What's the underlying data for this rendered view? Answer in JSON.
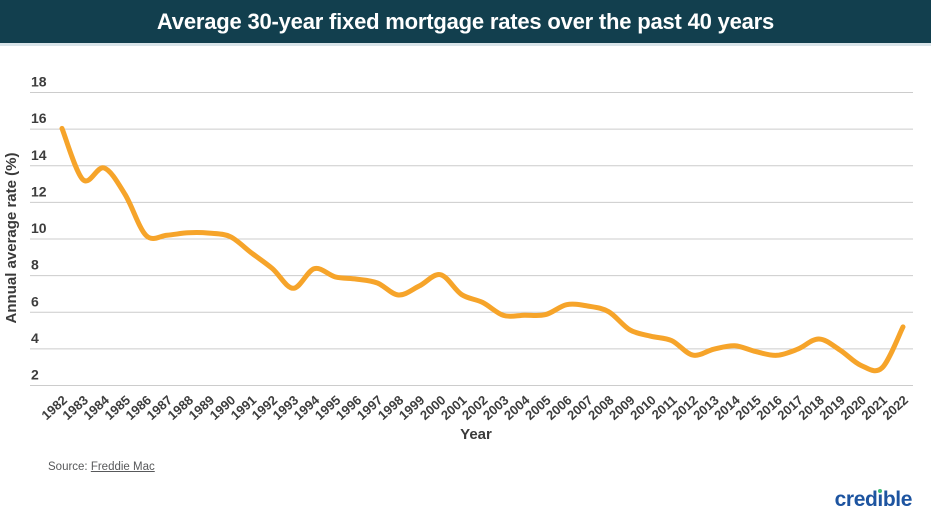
{
  "header": {
    "title": "Average 30-year fixed mortgage rates over the past 40 years"
  },
  "chart_data": {
    "type": "line",
    "title": "Average 30-year fixed mortgage rates over the past 40 years",
    "x": [
      1982,
      1983,
      1984,
      1985,
      1986,
      1987,
      1988,
      1989,
      1990,
      1991,
      1992,
      1993,
      1994,
      1995,
      1996,
      1997,
      1998,
      1999,
      2000,
      2001,
      2002,
      2003,
      2004,
      2005,
      2006,
      2007,
      2008,
      2009,
      2010,
      2011,
      2012,
      2013,
      2014,
      2015,
      2016,
      2017,
      2018,
      2019,
      2020,
      2021,
      2022
    ],
    "values": [
      16.04,
      13.24,
      13.88,
      12.43,
      10.19,
      10.21,
      10.34,
      10.32,
      10.13,
      9.25,
      8.39,
      7.31,
      8.38,
      7.93,
      7.81,
      7.6,
      6.94,
      7.44,
      8.05,
      6.97,
      6.54,
      5.83,
      5.84,
      5.87,
      6.41,
      6.34,
      6.03,
      5.04,
      4.69,
      4.45,
      3.66,
      3.98,
      4.17,
      3.85,
      3.65,
      3.99,
      4.54,
      3.94,
      3.1,
      2.96,
      5.2
    ],
    "xlabel": "Year",
    "ylabel": "Annual average rate (%)",
    "yticks": [
      18,
      16,
      14,
      12,
      10,
      8,
      6,
      4,
      2
    ],
    "ylim": [
      2,
      18
    ],
    "grid": "on",
    "legend": "none",
    "line_color": "#F6A42A",
    "grid_color": "#CCCCCC",
    "tick_text_color": "#3D3D3D"
  },
  "source": {
    "prefix": "Source: ",
    "link_text": "Freddie Mac"
  },
  "logo": {
    "full_text": "credible",
    "part_before_i": "cred",
    "i_char": "ı",
    "part_after_i": "ble",
    "blue": "#1D54A0",
    "green_dot": "#3CB878"
  },
  "colors": {
    "banner_bg": "#123F4E",
    "banner_text": "#FFFFFF",
    "banner_strip": "#D9E4E9"
  }
}
